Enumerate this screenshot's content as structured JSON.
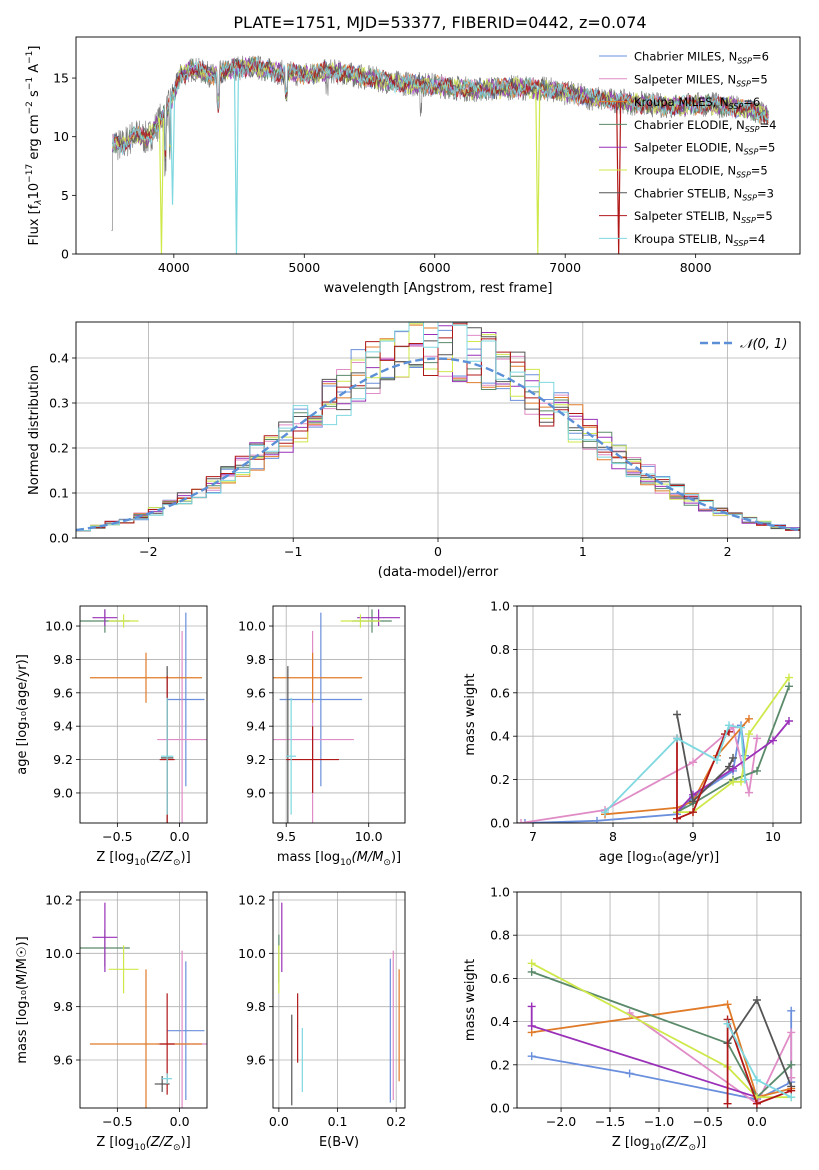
{
  "figure_title": "PLATE=1751, MJD=53377, FIBERID=0442, z=0.074",
  "colors": {
    "chabrier_miles": "#6a8fdc",
    "salpeter_miles": "#e08cc6",
    "kroupa_miles": "#e07b2a",
    "chabrier_elodie": "#5a8a6a",
    "salpeter_elodie": "#9a30b8",
    "kroupa_elodie": "#cfe84a",
    "chabrier_stelib": "#555555",
    "salpeter_stelib": "#b01818",
    "kroupa_stelib": "#7ed8e0",
    "data": "#777777",
    "gaussian": "#5b8fd6"
  },
  "chart_data": [
    {
      "id": "spectrum",
      "type": "line",
      "title": "PLATE=1751, MJD=53377, FIBERID=0442, z=0.074",
      "xlabel": "wavelength [Angstrom, rest frame]",
      "ylabel_parts": [
        "Flux [f",
        "λ",
        "10",
        "−17",
        " erg cm",
        "−2",
        " s",
        "−1",
        " A",
        "−1",
        "]"
      ],
      "xlim": [
        3250,
        8800
      ],
      "ylim": [
        0,
        18.5
      ],
      "xticks": [
        4000,
        5000,
        6000,
        7000,
        8000
      ],
      "yticks": [
        0,
        5,
        10,
        15
      ],
      "legend_position": "top-right",
      "legend": [
        {
          "name": "Chabrier MILES, N",
          "sub": "SSP",
          "n": "=6",
          "color_key": "chabrier_miles"
        },
        {
          "name": "Salpeter MILES, N",
          "sub": "SSP",
          "n": "=5",
          "color_key": "salpeter_miles"
        },
        {
          "name": "Kroupa MILES, N",
          "sub": "SSP",
          "n": "=6",
          "color_key": "kroupa_miles"
        },
        {
          "name": "Chabrier ELODIE, N",
          "sub": "SSP",
          "n": "=4",
          "color_key": "chabrier_elodie"
        },
        {
          "name": "Salpeter ELODIE, N",
          "sub": "SSP",
          "n": "=5",
          "color_key": "salpeter_elodie"
        },
        {
          "name": "Kroupa ELODIE, N",
          "sub": "SSP",
          "n": "=5",
          "color_key": "kroupa_elodie"
        },
        {
          "name": "Chabrier STELIB, N",
          "sub": "SSP",
          "n": "=3",
          "color_key": "chabrier_stelib"
        },
        {
          "name": "Salpeter STELIB, N",
          "sub": "SSP",
          "n": "=5",
          "color_key": "salpeter_stelib"
        },
        {
          "name": "Kroupa STELIB, N",
          "sub": "SSP",
          "n": "=4",
          "color_key": "kroupa_stelib"
        }
      ],
      "continuum": [
        [
          3520,
          9.6
        ],
        [
          3600,
          9.2
        ],
        [
          3700,
          10.2
        ],
        [
          3800,
          9.8
        ],
        [
          3900,
          11.5
        ],
        [
          3960,
          12.5
        ],
        [
          4050,
          15.2
        ],
        [
          4150,
          15.8
        ],
        [
          4300,
          15.2
        ],
        [
          4450,
          15.8
        ],
        [
          4600,
          16.0
        ],
        [
          4800,
          15.5
        ],
        [
          5000,
          15.3
        ],
        [
          5200,
          15.6
        ],
        [
          5400,
          15.2
        ],
        [
          5700,
          14.6
        ],
        [
          6000,
          14.4
        ],
        [
          6300,
          14.0
        ],
        [
          6600,
          14.2
        ],
        [
          6900,
          14.0
        ],
        [
          7200,
          13.3
        ],
        [
          7500,
          12.9
        ],
        [
          7800,
          12.6
        ],
        [
          8100,
          12.8
        ],
        [
          8400,
          12.3
        ],
        [
          8550,
          11.8
        ]
      ],
      "model_dips": [
        {
          "color_key": "kroupa_elodie",
          "x": 3905,
          "y": 0
        },
        {
          "color_key": "kroupa_stelib",
          "x": 3990,
          "y": 4.2
        },
        {
          "color_key": "kroupa_stelib",
          "x": 4480,
          "y": 0
        },
        {
          "color_key": "kroupa_elodie",
          "x": 6790,
          "y": 0
        },
        {
          "color_key": "salpeter_stelib",
          "x": 7410,
          "y": 0
        }
      ]
    },
    {
      "id": "residuals",
      "type": "histogram",
      "xlabel": "(data-model)/error",
      "ylabel": "Normed distribution",
      "xlim": [
        -2.5,
        2.5
      ],
      "ylim": [
        0,
        0.48
      ],
      "xticks": [
        -2,
        -1,
        0,
        1,
        2
      ],
      "yticks": [
        0.0,
        0.1,
        0.2,
        0.3,
        0.4
      ],
      "grid": true,
      "legend_position": "top-right",
      "gaussian_label": "𝒩(0, 1)",
      "bin_start": -2.5,
      "bin_width": 0.1
    },
    {
      "id": "age_vs_Z",
      "type": "errorbar",
      "xlabel_main": "Z [log",
      "xlabel_sub": "10",
      "xlabel_rest": "(Z/Z",
      "ylabel": "age  [log₁₀(age/yr)]",
      "xlim": [
        -0.8,
        0.22
      ],
      "ylim": [
        8.82,
        10.12
      ],
      "xticks": [
        -0.5,
        0.0
      ],
      "yticks": [
        9.0,
        9.2,
        9.4,
        9.6,
        9.8,
        10.0
      ],
      "grid": true,
      "points": [
        {
          "color_key": "chabrier_miles",
          "x": 0.05,
          "xerr": 0.15,
          "y": 9.56,
          "yerr": 0.52
        },
        {
          "color_key": "salpeter_miles",
          "x": 0.02,
          "xerr": 0.2,
          "y": 9.32,
          "yerr": 0.65
        },
        {
          "color_key": "kroupa_miles",
          "x": -0.27,
          "xerr": 0.45,
          "y": 9.69,
          "yerr": 0.15
        },
        {
          "color_key": "chabrier_elodie",
          "x": -0.6,
          "xerr": 0.2,
          "y": 10.03,
          "yerr": 0.07
        },
        {
          "color_key": "salpeter_elodie",
          "x": -0.6,
          "xerr": 0.1,
          "y": 10.05,
          "yerr": 0.05
        },
        {
          "color_key": "kroupa_elodie",
          "x": -0.45,
          "xerr": 0.12,
          "y": 10.03,
          "yerr": 0.04
        },
        {
          "color_key": "chabrier_stelib",
          "x": -0.1,
          "xerr": 0.05,
          "y": 9.21,
          "yerr": 0.55
        },
        {
          "color_key": "salpeter_stelib",
          "x": -0.1,
          "xerr": 0.06,
          "y": 9.2,
          "yerr": 0.5
        },
        {
          "color_key": "kroupa_stelib",
          "x": -0.1,
          "xerr": 0.05,
          "y": 9.22,
          "yerr": 0.35
        }
      ]
    },
    {
      "id": "age_vs_mass",
      "type": "errorbar",
      "xlabel_main": "mass [log",
      "xlabel_sub": "10",
      "xlabel_rest": "(M/M",
      "ylabel": "",
      "xlim": [
        9.42,
        10.22
      ],
      "ylim": [
        8.82,
        10.12
      ],
      "xticks": [
        9.5,
        10.0
      ],
      "yticks": [
        9.0,
        9.2,
        9.4,
        9.6,
        9.8,
        10.0
      ],
      "grid": true,
      "points": [
        {
          "color_key": "chabrier_miles",
          "x": 9.71,
          "xerr": 0.25,
          "y": 9.56,
          "yerr": 0.52
        },
        {
          "color_key": "salpeter_miles",
          "x": 9.66,
          "xerr": 0.25,
          "y": 9.32,
          "yerr": 0.65
        },
        {
          "color_key": "kroupa_miles",
          "x": 9.66,
          "xerr": 0.3,
          "y": 9.69,
          "yerr": 0.15
        },
        {
          "color_key": "chabrier_elodie",
          "x": 10.02,
          "xerr": 0.12,
          "y": 10.03,
          "yerr": 0.07
        },
        {
          "color_key": "salpeter_elodie",
          "x": 10.06,
          "xerr": 0.13,
          "y": 10.05,
          "yerr": 0.05
        },
        {
          "color_key": "kroupa_elodie",
          "x": 9.95,
          "xerr": 0.12,
          "y": 10.03,
          "yerr": 0.04
        },
        {
          "color_key": "chabrier_stelib",
          "x": 9.51,
          "xerr": 0.0,
          "y": 9.21,
          "yerr": 0.55
        },
        {
          "color_key": "salpeter_stelib",
          "x": 9.66,
          "xerr": 0.16,
          "y": 9.2,
          "yerr": 0.2
        },
        {
          "color_key": "kroupa_stelib",
          "x": 9.53,
          "xerr": 0.03,
          "y": 9.22,
          "yerr": 0.35
        }
      ]
    },
    {
      "id": "mass_weight_vs_age",
      "type": "line",
      "xlabel": "age  [log₁₀(age/yr)]",
      "ylabel": "mass weight",
      "xlim": [
        6.8,
        10.35
      ],
      "ylim": [
        0,
        1.0
      ],
      "xticks": [
        7,
        8,
        9,
        10
      ],
      "yticks": [
        0.0,
        0.2,
        0.4,
        0.6,
        0.8,
        1.0
      ],
      "grid": true,
      "series": [
        {
          "color_key": "chabrier_miles",
          "x": [
            6.9,
            7.8,
            8.8,
            9.0,
            9.5,
            9.6,
            9.65
          ],
          "y": [
            0.0,
            0.01,
            0.04,
            0.12,
            0.24,
            0.45,
            0.31
          ]
        },
        {
          "color_key": "salpeter_miles",
          "x": [
            6.85,
            7.9,
            9.0,
            9.5,
            9.7,
            9.8
          ],
          "y": [
            0.0,
            0.06,
            0.28,
            0.44,
            0.14,
            0.39
          ]
        },
        {
          "color_key": "kroupa_miles",
          "x": [
            7.9,
            8.8,
            9.0,
            9.3,
            9.7
          ],
          "y": [
            0.04,
            0.07,
            0.1,
            0.31,
            0.48
          ]
        },
        {
          "color_key": "chabrier_elodie",
          "x": [
            8.8,
            9.0,
            9.5,
            9.8,
            10.2
          ],
          "y": [
            0.05,
            0.09,
            0.2,
            0.24,
            0.63
          ]
        },
        {
          "color_key": "salpeter_elodie",
          "x": [
            8.8,
            9.0,
            9.5,
            10.0,
            10.2
          ],
          "y": [
            0.05,
            0.13,
            0.25,
            0.38,
            0.47
          ]
        },
        {
          "color_key": "kroupa_elodie",
          "x": [
            8.8,
            9.0,
            9.5,
            9.6,
            9.7,
            10.2
          ],
          "y": [
            0.05,
            0.05,
            0.19,
            0.19,
            0.41,
            0.67
          ]
        },
        {
          "color_key": "chabrier_stelib",
          "x": [
            8.8,
            9.0,
            9.45,
            9.5
          ],
          "y": [
            0.5,
            0.1,
            0.26,
            0.3
          ]
        },
        {
          "color_key": "salpeter_stelib",
          "x": [
            8.8,
            8.8,
            9.0,
            9.4,
            9.45
          ],
          "y": [
            0.39,
            0.02,
            0.05,
            0.41,
            0.42
          ]
        },
        {
          "color_key": "kroupa_stelib",
          "x": [
            7.9,
            8.8,
            9.3,
            9.45,
            9.6,
            9.65
          ],
          "y": [
            0.05,
            0.39,
            0.29,
            0.45,
            0.44,
            0.2
          ]
        }
      ]
    },
    {
      "id": "mass_vs_Z",
      "type": "errorbar",
      "xlabel_main": "Z [log",
      "xlabel_sub": "10",
      "xlabel_rest": "(Z/Z",
      "ylabel": "mass [log₁₀(M/M☉)]",
      "xlim": [
        -0.8,
        0.22
      ],
      "ylim": [
        9.42,
        10.23
      ],
      "xticks": [
        -0.5,
        0.0
      ],
      "yticks": [
        9.6,
        9.8,
        10.0,
        10.2
      ],
      "grid": true,
      "points": [
        {
          "color_key": "chabrier_miles",
          "x": 0.05,
          "xerr": 0.15,
          "y": 9.71,
          "yerr": 0.26
        },
        {
          "color_key": "salpeter_miles",
          "x": 0.02,
          "xerr": 0.2,
          "y": 9.66,
          "yerr": 0.35
        },
        {
          "color_key": "kroupa_miles",
          "x": -0.27,
          "xerr": 0.45,
          "y": 9.66,
          "yerr": 0.28
        },
        {
          "color_key": "chabrier_elodie",
          "x": -0.6,
          "xerr": 0.2,
          "y": 10.02,
          "yerr": 0.07
        },
        {
          "color_key": "salpeter_elodie",
          "x": -0.6,
          "xerr": 0.1,
          "y": 10.06,
          "yerr": 0.13
        },
        {
          "color_key": "kroupa_elodie",
          "x": -0.45,
          "xerr": 0.12,
          "y": 9.94,
          "yerr": 0.09
        },
        {
          "color_key": "chabrier_stelib",
          "x": -0.14,
          "xerr": 0.06,
          "y": 9.51,
          "yerr": 0.03
        },
        {
          "color_key": "salpeter_stelib",
          "x": -0.1,
          "xerr": 0.06,
          "y": 9.66,
          "yerr": 0.19
        },
        {
          "color_key": "kroupa_stelib",
          "x": -0.1,
          "xerr": 0.04,
          "y": 9.53,
          "yerr": 0.02
        }
      ]
    },
    {
      "id": "mass_vs_ebv",
      "type": "errorbar",
      "xlabel": "E(B-V)",
      "ylabel": "",
      "xlim": [
        -0.01,
        0.215
      ],
      "ylim": [
        9.42,
        10.23
      ],
      "xticks": [
        0.0,
        0.1,
        0.2
      ],
      "yticks": [
        9.6,
        9.8,
        10.0,
        10.2
      ],
      "grid": true,
      "points": [
        {
          "color_key": "chabrier_miles",
          "x": 0.19,
          "xerr": 0,
          "y": 9.71,
          "yerr": 0.27
        },
        {
          "color_key": "salpeter_miles",
          "x": 0.195,
          "xerr": 0,
          "y": 9.73,
          "yerr": 0.28
        },
        {
          "color_key": "kroupa_miles",
          "x": 0.205,
          "xerr": 0,
          "y": 9.73,
          "yerr": 0.21
        },
        {
          "color_key": "chabrier_elodie",
          "x": 0.0,
          "xerr": 0,
          "y": 9.98,
          "yerr": 0.09
        },
        {
          "color_key": "salpeter_elodie",
          "x": 0.005,
          "xerr": 0,
          "y": 10.06,
          "yerr": 0.13
        },
        {
          "color_key": "kroupa_elodie",
          "x": 0.0,
          "xerr": 0,
          "y": 9.94,
          "yerr": 0.09
        },
        {
          "color_key": "chabrier_stelib",
          "x": 0.022,
          "xerr": 0,
          "y": 9.6,
          "yerr": 0.17
        },
        {
          "color_key": "salpeter_stelib",
          "x": 0.032,
          "xerr": 0,
          "y": 9.72,
          "yerr": 0.13
        },
        {
          "color_key": "kroupa_stelib",
          "x": 0.04,
          "xerr": 0,
          "y": 9.6,
          "yerr": 0.12
        }
      ]
    },
    {
      "id": "mass_weight_vs_Z",
      "type": "line",
      "xlabel_main": "Z [log",
      "xlabel_sub": "10",
      "xlabel_rest": "(Z/Z",
      "ylabel": "mass weight",
      "xlim": [
        -2.45,
        0.45
      ],
      "ylim": [
        0,
        1.0
      ],
      "xticks": [
        -2.0,
        -1.5,
        -1.0,
        -0.5,
        0.0
      ],
      "yticks": [
        0.0,
        0.2,
        0.4,
        0.6,
        0.8,
        1.0
      ],
      "grid": true,
      "series": [
        {
          "color_key": "chabrier_miles",
          "x": [
            -2.3,
            -1.3,
            0.0,
            0.35,
            0.35
          ],
          "y": [
            0.24,
            0.16,
            0.04,
            0.12,
            0.45
          ]
        },
        {
          "color_key": "salpeter_miles",
          "x": [
            -1.3,
            0.0,
            0.35,
            0.35
          ],
          "y": [
            0.44,
            0.02,
            0.35,
            0.14
          ]
        },
        {
          "color_key": "kroupa_miles",
          "x": [
            -2.3,
            -0.3,
            0.0,
            0.35
          ],
          "y": [
            0.35,
            0.48,
            0.05,
            0.09
          ]
        },
        {
          "color_key": "chabrier_elodie",
          "x": [
            -2.3,
            -0.3,
            0.0,
            0.35
          ],
          "y": [
            0.63,
            0.3,
            0.05,
            0.2
          ]
        },
        {
          "color_key": "salpeter_elodie",
          "x": [
            -2.3,
            -2.3,
            0.0
          ],
          "y": [
            0.47,
            0.38,
            0.05
          ]
        },
        {
          "color_key": "kroupa_elodie",
          "x": [
            -2.3,
            -0.3,
            0.0,
            0.35
          ],
          "y": [
            0.67,
            0.19,
            0.05,
            0.05
          ]
        },
        {
          "color_key": "chabrier_stelib",
          "x": [
            -0.3,
            0.0,
            0.35
          ],
          "y": [
            0.3,
            0.5,
            0.1
          ]
        },
        {
          "color_key": "salpeter_stelib",
          "x": [
            -0.3,
            -0.3,
            0.0,
            0.35
          ],
          "y": [
            0.02,
            0.41,
            0.02,
            0.08
          ]
        },
        {
          "color_key": "kroupa_stelib",
          "x": [
            -0.3,
            0.0,
            0.35
          ],
          "y": [
            0.39,
            0.13,
            0.05
          ]
        }
      ]
    }
  ]
}
